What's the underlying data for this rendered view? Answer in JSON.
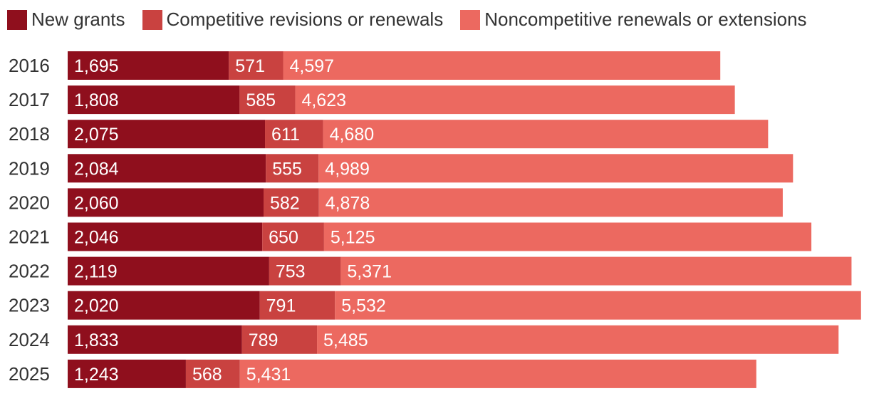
{
  "chart_data": {
    "type": "bar",
    "orientation": "horizontal",
    "stacked": true,
    "title": "",
    "xlabel": "",
    "ylabel": "",
    "categories": [
      "2016",
      "2017",
      "2018",
      "2019",
      "2020",
      "2021",
      "2022",
      "2023",
      "2024",
      "2025"
    ],
    "series": [
      {
        "name": "New grants",
        "color": "#8f0f1d",
        "values": [
          1695,
          1808,
          2075,
          2084,
          2060,
          2046,
          2119,
          2020,
          1833,
          1243
        ]
      },
      {
        "name": "Competitive revisions or renewals",
        "color": "#c94240",
        "values": [
          571,
          585,
          611,
          555,
          582,
          650,
          753,
          791,
          789,
          568
        ]
      },
      {
        "name": "Noncompetitive renewals or extensions",
        "color": "#ec6960",
        "values": [
          4597,
          4623,
          4680,
          4989,
          4878,
          5125,
          5371,
          5532,
          5485,
          5431
        ]
      }
    ],
    "legend_position": "top-left",
    "grid": false,
    "data_labels": true
  }
}
